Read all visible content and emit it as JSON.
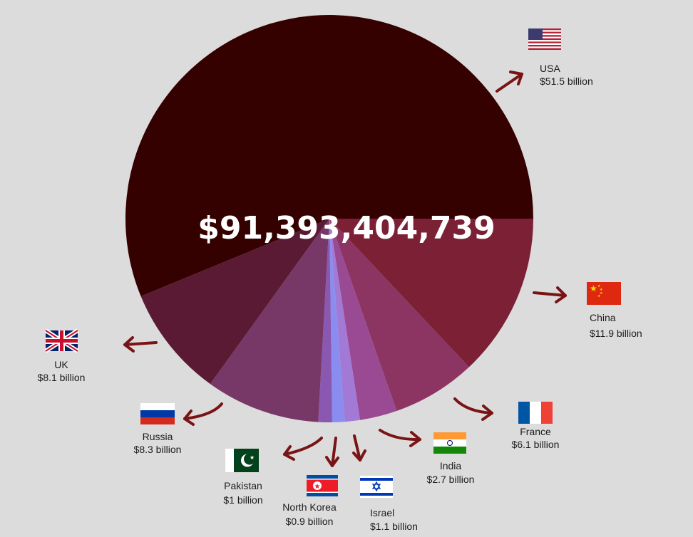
{
  "chart_data": {
    "type": "pie",
    "total_label": "$91,393,404,739",
    "slices": [
      {
        "name": "USA",
        "value": 51.5,
        "value_label": "$51.5 billion",
        "color": "#350000",
        "flag": "usa"
      },
      {
        "name": "China",
        "value": 11.9,
        "value_label": "$11.9 billion",
        "color": "#7b2035",
        "flag": "china"
      },
      {
        "name": "France",
        "value": 6.1,
        "value_label": "$6.1 billion",
        "color": "#8c3462",
        "flag": "france"
      },
      {
        "name": "India",
        "value": 2.7,
        "value_label": "$2.7 billion",
        "color": "#9a4a92",
        "flag": "india"
      },
      {
        "name": "Israel",
        "value": 1.1,
        "value_label": "$1.1 billion",
        "color": "#a27ad6",
        "flag": "israel"
      },
      {
        "name": "North Korea",
        "value": 0.9,
        "value_label": "$0.9 billion",
        "color": "#8a8cf0",
        "flag": "north-korea"
      },
      {
        "name": "Pakistan",
        "value": 1.0,
        "value_label": "$1 billion",
        "color": "#8a58b0",
        "flag": "pakistan"
      },
      {
        "name": "Russia",
        "value": 8.3,
        "value_label": "$8.3 billion",
        "color": "#773868",
        "flag": "russia"
      },
      {
        "name": "UK",
        "value": 8.1,
        "value_label": "$8.1 billion",
        "color": "#5a1a33",
        "flag": "uk"
      }
    ]
  }
}
